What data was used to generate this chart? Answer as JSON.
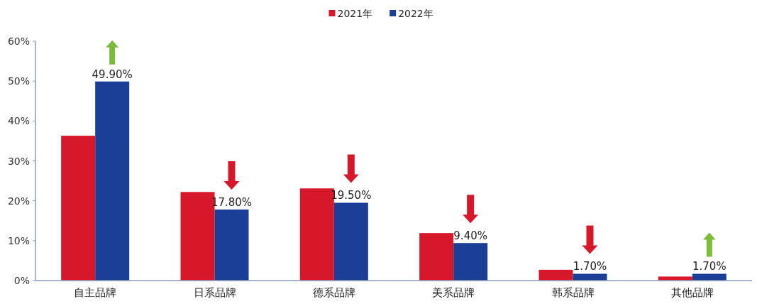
{
  "chart_data": {
    "type": "bar",
    "categories": [
      "自主品牌",
      "日系品牌",
      "德系品牌",
      "美系品牌",
      "韩系品牌",
      "其他品牌"
    ],
    "series": [
      {
        "name": "2021年",
        "color": "#d7182a",
        "values": [
          36.3,
          22.2,
          23.1,
          11.9,
          2.7,
          1.0
        ]
      },
      {
        "name": "2022年",
        "color": "#1b3f97",
        "values": [
          49.9,
          17.8,
          19.5,
          9.4,
          1.7,
          1.7
        ],
        "value_labels": [
          "49.90%",
          "17.80%",
          "19.50%",
          "9.40%",
          "1.70%",
          "1.70%"
        ]
      }
    ],
    "ylim": [
      0,
      60
    ],
    "yticks": [
      {
        "value": 0,
        "label": "0%"
      },
      {
        "value": 10,
        "label": "10%"
      },
      {
        "value": 20,
        "label": "20%"
      },
      {
        "value": 30,
        "label": "30%"
      },
      {
        "value": 40,
        "label": "40%"
      },
      {
        "value": 50,
        "label": "50%"
      },
      {
        "value": 60,
        "label": "60%"
      }
    ],
    "legend": "top",
    "grid": false
  }
}
